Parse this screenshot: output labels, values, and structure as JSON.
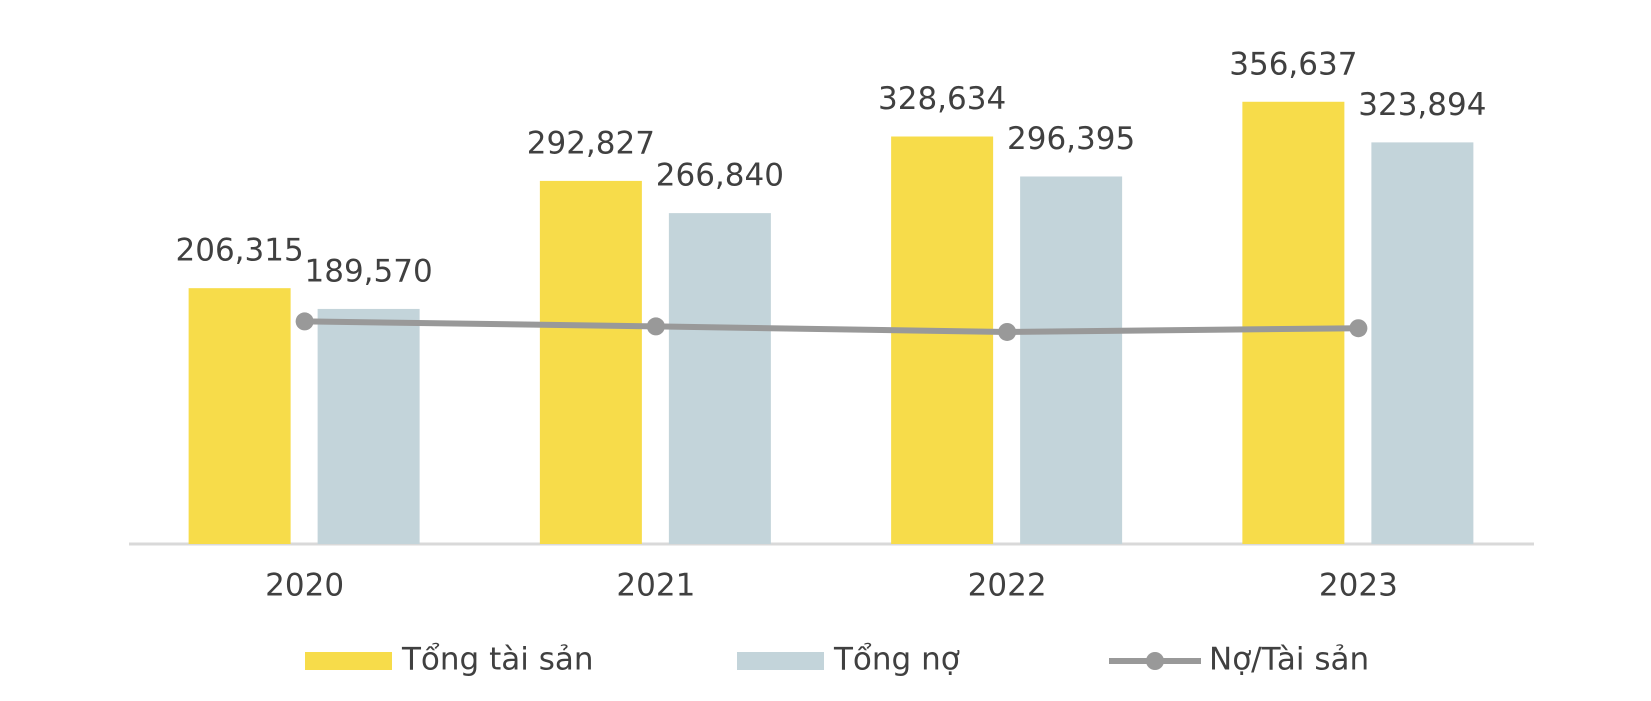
{
  "chart_data": {
    "type": "bar-line",
    "categories": [
      "2020",
      "2021",
      "2022",
      "2023"
    ],
    "series": [
      {
        "name": "Tổng tài sản",
        "type": "bar",
        "color": "#F7DC4A",
        "values": [
          206315,
          292827,
          328634,
          356637
        ],
        "value_labels": [
          "206,315",
          "292,827",
          "328,634",
          "356,637"
        ]
      },
      {
        "name": "Tổng nợ",
        "type": "bar",
        "color": "#C3D4DA",
        "values": [
          189570,
          266840,
          296395,
          323894
        ],
        "value_labels": [
          "189,570",
          "266,840",
          "296,395",
          "323,894"
        ]
      },
      {
        "name": "Nợ/Tài sản",
        "type": "line",
        "axis": "y2",
        "color": "#999999",
        "values": [
          91.9,
          91.1,
          90.2,
          90.8
        ]
      }
    ],
    "ylim": [
      0,
      400000
    ],
    "y2lim": [
      56,
      136
    ],
    "legend": "bottom"
  }
}
